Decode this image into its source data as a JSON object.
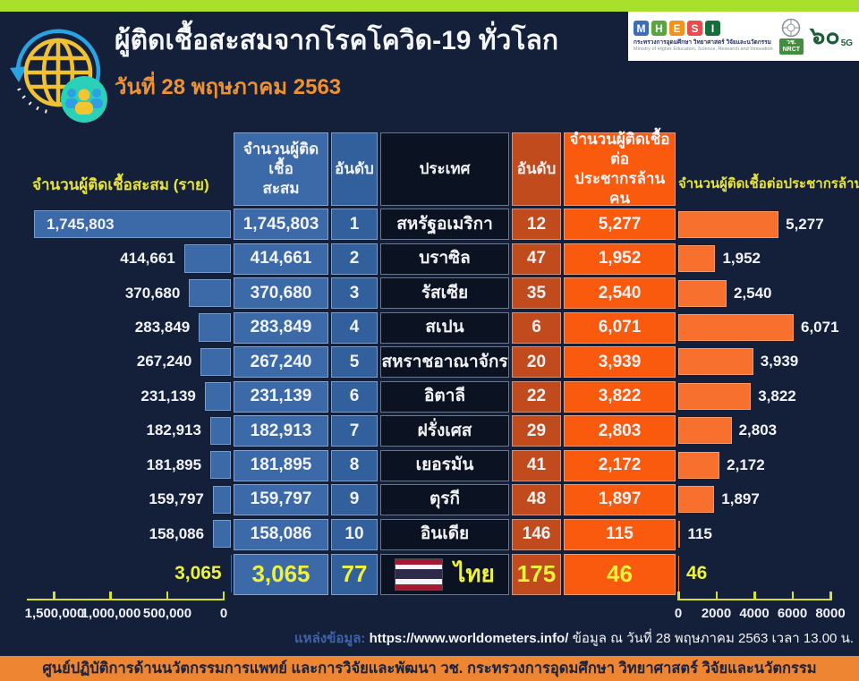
{
  "header": {
    "title": "ผู้ติดเชื้อสะสมจากโรคโควิด-19 ทั่วโลก",
    "date": "วันที่ 28 พฤษภาคม 2563",
    "logos": {
      "mhesi_letters": [
        "M",
        "H",
        "E",
        "S",
        "I"
      ],
      "mhesi_letter_colors": [
        "#3b6eb5",
        "#5ba443",
        "#f0941f",
        "#e84c4c",
        "#156f3d"
      ],
      "mhesi_thai": "กระทรวงการอุดมศึกษา วิทยาศาสตร์ วิจัยและนวัตกรรม",
      "mhesi_eng": "Ministry of Higher Education, Science, Research and Innovation",
      "nrct_line1": "วช.",
      "nrct_line2": "NRCT",
      "anniversary_num": "๖๐",
      "anniversary_sub": "5G"
    }
  },
  "table": {
    "headers": {
      "cumulative_l1": "จำนวนผู้ติดเชื้อ",
      "cumulative_l2": "สะสม",
      "rank": "อันดับ",
      "country": "ประเทศ",
      "rank_per_million": "อันดับ",
      "per_million_l1": "จำนวนผู้ติดเชื้อต่อ",
      "per_million_l2": "ประชากรล้านคน"
    },
    "rows": [
      {
        "cumulative": "1,745,803",
        "rank": "1",
        "country": "สหรัฐอเมริกา",
        "rank_pm": "12",
        "per_million": "5,277"
      },
      {
        "cumulative": "414,661",
        "rank": "2",
        "country": "บราซิล",
        "rank_pm": "47",
        "per_million": "1,952"
      },
      {
        "cumulative": "370,680",
        "rank": "3",
        "country": "รัสเซีย",
        "rank_pm": "35",
        "per_million": "2,540"
      },
      {
        "cumulative": "283,849",
        "rank": "4",
        "country": "สเปน",
        "rank_pm": "6",
        "per_million": "6,071"
      },
      {
        "cumulative": "267,240",
        "rank": "5",
        "country": "สหราชอาณาจักร",
        "rank_pm": "20",
        "per_million": "3,939"
      },
      {
        "cumulative": "231,139",
        "rank": "6",
        "country": "อิตาลี",
        "rank_pm": "22",
        "per_million": "3,822"
      },
      {
        "cumulative": "182,913",
        "rank": "7",
        "country": "ฝรั่งเศส",
        "rank_pm": "29",
        "per_million": "2,803"
      },
      {
        "cumulative": "181,895",
        "rank": "8",
        "country": "เยอรมัน",
        "rank_pm": "41",
        "per_million": "2,172"
      },
      {
        "cumulative": "159,797",
        "rank": "9",
        "country": "ตุรกี",
        "rank_pm": "48",
        "per_million": "1,897"
      },
      {
        "cumulative": "158,086",
        "rank": "10",
        "country": "อินเดีย",
        "rank_pm": "146",
        "per_million": "115"
      },
      {
        "cumulative": "3,065",
        "rank": "77",
        "country": "ไทย",
        "rank_pm": "175",
        "per_million": "46",
        "thai": true
      }
    ]
  },
  "chart_data": [
    {
      "type": "bar",
      "orientation": "horizontal",
      "direction": "right-to-left",
      "title": "จำนวนผู้ติดเชื้อสะสม (ราย)",
      "categories": [
        "สหรัฐอเมริกา",
        "บราซิล",
        "รัสเซีย",
        "สเปน",
        "สหราชอาณาจักร",
        "อิตาลี",
        "ฝรั่งเศส",
        "เยอรมัน",
        "ตุรกี",
        "อินเดีย",
        "ไทย"
      ],
      "values": [
        1745803,
        414661,
        370680,
        283849,
        267240,
        231139,
        182913,
        181895,
        159797,
        158086,
        3065
      ],
      "value_labels": [
        "1,745,803",
        "414,661",
        "370,680",
        "283,849",
        "267,240",
        "231,139",
        "182,913",
        "181,895",
        "159,797",
        "158,086",
        "3,065"
      ],
      "xlim": [
        0,
        1745803
      ],
      "tick_values": [
        1500000,
        1000000,
        500000,
        0
      ],
      "tick_labels": [
        "1,500,000",
        "1,000,000",
        "500,000",
        "0"
      ],
      "bar_color": "#3c69a7",
      "grid": false,
      "legend": false
    },
    {
      "type": "bar",
      "orientation": "horizontal",
      "direction": "left-to-right",
      "title": "จำนวนผู้ติดเชื้อต่อประชากรล้านคน",
      "categories": [
        "สหรัฐอเมริกา",
        "บราซิล",
        "รัสเซีย",
        "สเปน",
        "สหราชอาณาจักร",
        "อิตาลี",
        "ฝรั่งเศส",
        "เยอรมัน",
        "ตุรกี",
        "อินเดีย",
        "ไทย"
      ],
      "values": [
        5277,
        1952,
        2540,
        6071,
        3939,
        3822,
        2803,
        2172,
        1897,
        115,
        46
      ],
      "value_labels": [
        "5,277",
        "1,952",
        "2,540",
        "6,071",
        "3,939",
        "3,822",
        "2,803",
        "2,172",
        "1,897",
        "115",
        "46"
      ],
      "xlim": [
        0,
        8000
      ],
      "tick_values": [
        0,
        2000,
        4000,
        6000,
        8000
      ],
      "tick_labels": [
        "0",
        "2000",
        "4000",
        "6000",
        "8000"
      ],
      "bar_color": "#f8702e",
      "grid": false,
      "legend": false
    }
  ],
  "source": {
    "label": "แหล่งข้อมูล:",
    "url": "https://www.worldometers.info/",
    "rest": "ข้อมูล ณ วันที่ 28 พฤษภาคม 2563 เวลา 13.00 น."
  },
  "footer": {
    "text": "ศูนย์ปฏิบัติการด้านนวัตกรรมการแพทย์ และการวิจัยและพัฒนา  วช.   กระทรวงการอุดมศึกษา วิทยาศาสตร์ วิจัยและนวัตกรรม"
  },
  "colors": {
    "background": "#14203a",
    "top_bar": "#a9e02c",
    "title_text": "#f4f6f8",
    "date_text": "#ef9130",
    "chart_title_yellow": "#e9e43c",
    "thai_row_yellow": "#eef23c",
    "cell_blue": "#3c69a7",
    "cell_blue_dark": "#32609c",
    "cell_black": "#0b1222",
    "cell_rust": "#c14b1d",
    "cell_orange": "#f95a0e",
    "axis_yellow": "#d6df35",
    "footer_bg": "#ed8533",
    "flag_red": "#a51931",
    "flag_white": "#f4f5f8",
    "flag_blue": "#2d2a4a"
  }
}
